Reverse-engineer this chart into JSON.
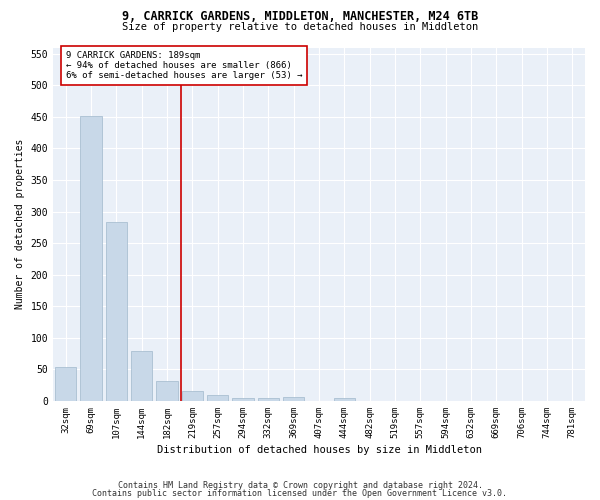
{
  "title1": "9, CARRICK GARDENS, MIDDLETON, MANCHESTER, M24 6TB",
  "title2": "Size of property relative to detached houses in Middleton",
  "xlabel": "Distribution of detached houses by size in Middleton",
  "ylabel": "Number of detached properties",
  "bar_labels": [
    "32sqm",
    "69sqm",
    "107sqm",
    "144sqm",
    "182sqm",
    "219sqm",
    "257sqm",
    "294sqm",
    "332sqm",
    "369sqm",
    "407sqm",
    "444sqm",
    "482sqm",
    "519sqm",
    "557sqm",
    "594sqm",
    "632sqm",
    "669sqm",
    "706sqm",
    "744sqm",
    "781sqm"
  ],
  "bar_values": [
    53,
    451,
    284,
    79,
    31,
    15,
    10,
    5,
    5,
    6,
    0,
    5,
    0,
    0,
    0,
    0,
    0,
    0,
    0,
    0,
    0
  ],
  "bar_color": "#c8d8e8",
  "bar_edgecolor": "#a0b8cc",
  "property_line_x": 4.55,
  "property_label": "9 CARRICK GARDENS: 189sqm",
  "annotation_line1": "← 94% of detached houses are smaller (866)",
  "annotation_line2": "6% of semi-detached houses are larger (53) →",
  "vline_color": "#cc0000",
  "box_color": "#cc0000",
  "ylim": [
    0,
    560
  ],
  "yticks": [
    0,
    50,
    100,
    150,
    200,
    250,
    300,
    350,
    400,
    450,
    500,
    550
  ],
  "bg_color": "#eaf0f8",
  "footnote1": "Contains HM Land Registry data © Crown copyright and database right 2024.",
  "footnote2": "Contains public sector information licensed under the Open Government Licence v3.0."
}
